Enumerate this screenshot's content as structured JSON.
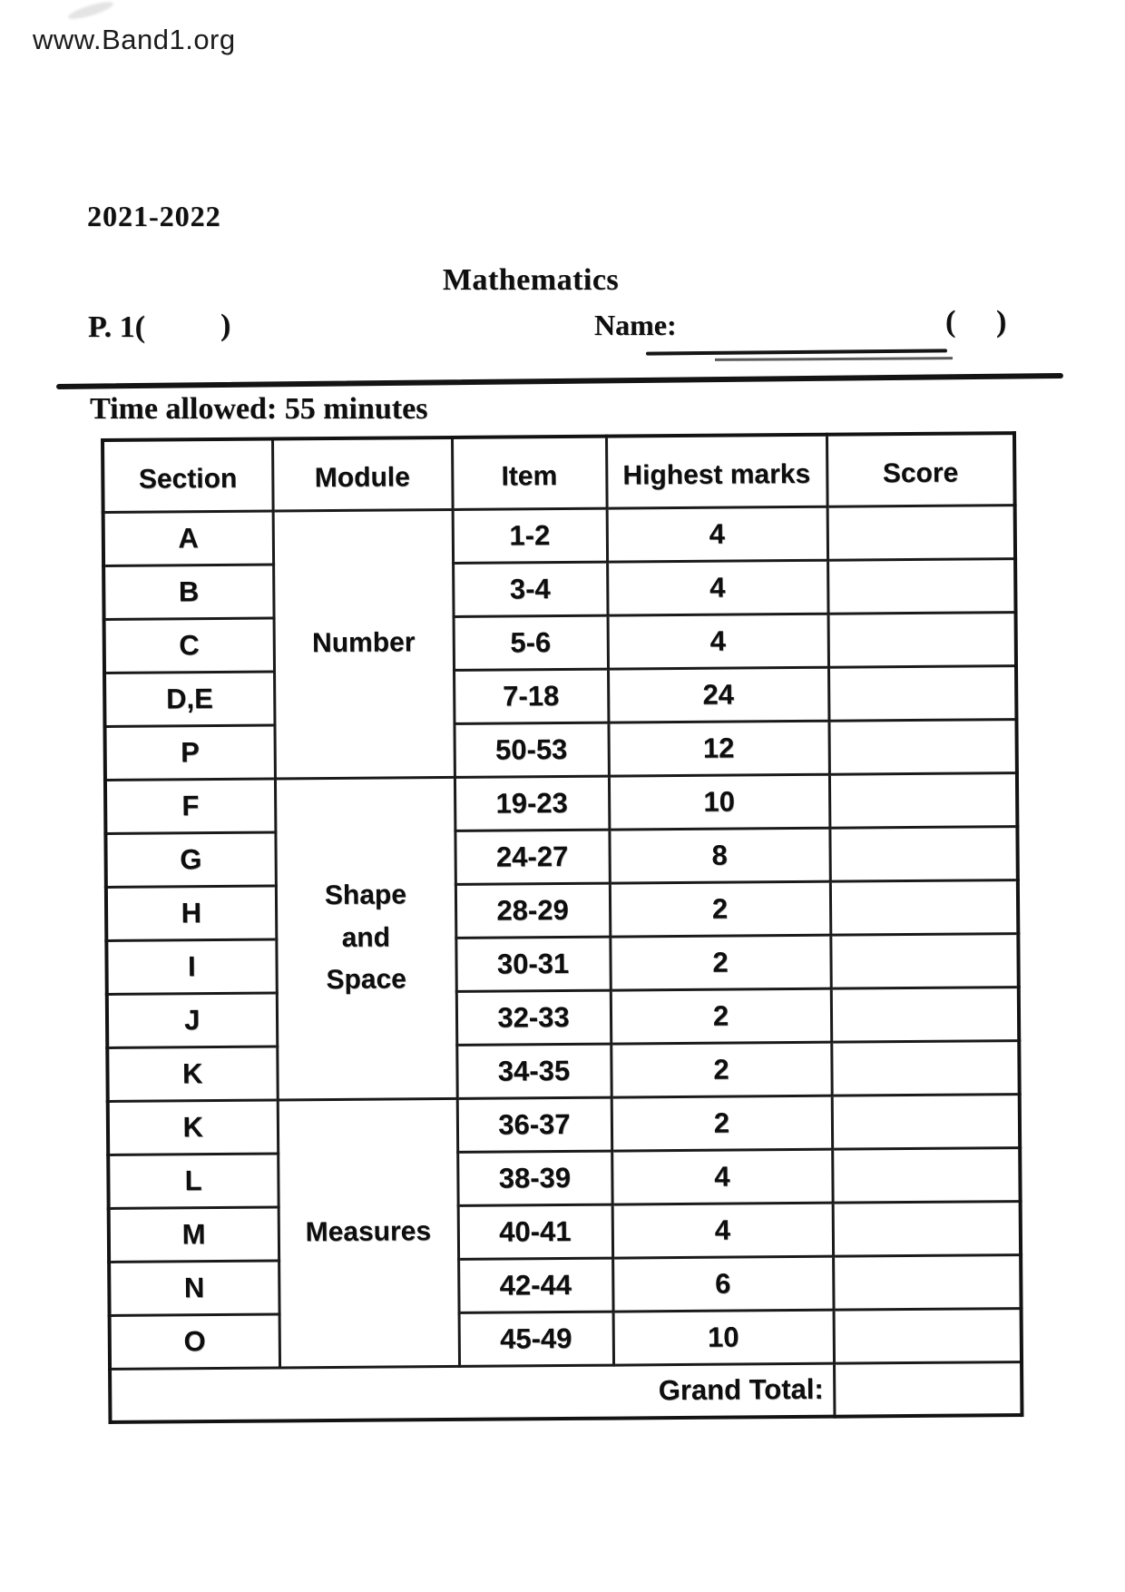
{
  "watermark": "www.Band1.org",
  "header": {
    "school_year": "2021-2022",
    "subject_title": "Mathematics",
    "class_label": "P. 1(",
    "class_paren_close": ")",
    "name_label": "Name:",
    "name_paren_open": "(",
    "name_paren_close": ")",
    "time_allowed": "Time allowed: 55 minutes"
  },
  "table": {
    "headers": [
      "Section",
      "Module",
      "Item",
      "Highest marks",
      "Score"
    ],
    "rows": [
      {
        "section": "A",
        "module": "Number",
        "module_lines": [
          "Number"
        ],
        "module_rowspan": 5,
        "item": "1-2",
        "highest_marks": "4",
        "score": ""
      },
      {
        "section": "B",
        "item": "3-4",
        "highest_marks": "4",
        "score": ""
      },
      {
        "section": "C",
        "item": "5-6",
        "highest_marks": "4",
        "score": ""
      },
      {
        "section": "D,E",
        "item": "7-18",
        "highest_marks": "24",
        "score": ""
      },
      {
        "section": "P",
        "item": "50-53",
        "highest_marks": "12",
        "score": ""
      },
      {
        "section": "F",
        "module": "Shape and Space",
        "module_lines": [
          "Shape",
          "and",
          "Space"
        ],
        "module_rowspan": 6,
        "item": "19-23",
        "highest_marks": "10",
        "score": ""
      },
      {
        "section": "G",
        "item": "24-27",
        "highest_marks": "8",
        "score": ""
      },
      {
        "section": "H",
        "item": "28-29",
        "highest_marks": "2",
        "score": ""
      },
      {
        "section": "I",
        "item": "30-31",
        "highest_marks": "2",
        "score": ""
      },
      {
        "section": "J",
        "item": "32-33",
        "highest_marks": "2",
        "score": ""
      },
      {
        "section": "K",
        "item": "34-35",
        "highest_marks": "2",
        "score": ""
      },
      {
        "section": "K",
        "module": "Measures",
        "module_lines": [
          "Measures"
        ],
        "module_rowspan": 5,
        "item": "36-37",
        "highest_marks": "2",
        "score": ""
      },
      {
        "section": "L",
        "item": "38-39",
        "highest_marks": "4",
        "score": ""
      },
      {
        "section": "M",
        "item": "40-41",
        "highest_marks": "4",
        "score": ""
      },
      {
        "section": "N",
        "item": "42-44",
        "highest_marks": "6",
        "score": ""
      },
      {
        "section": "O",
        "item": "45-49",
        "highest_marks": "10",
        "score": ""
      }
    ],
    "grand_total_label": "Grand Total:",
    "grand_total_score": ""
  }
}
